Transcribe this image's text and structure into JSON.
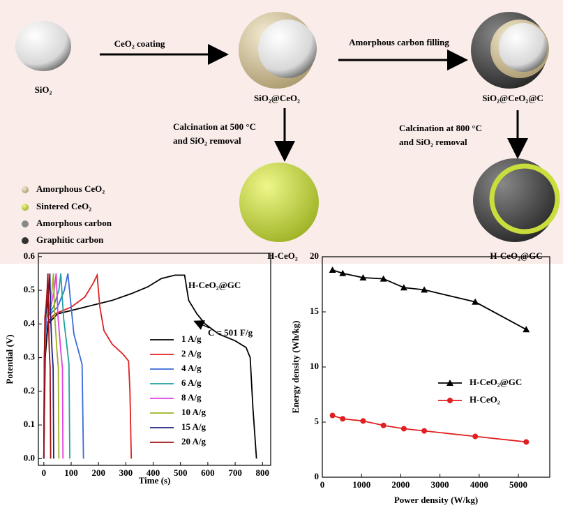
{
  "schematic": {
    "sio2": "SiO₂",
    "step1": "CeO₂ coating",
    "sio2_ceo2": "SiO₂@CeO₂",
    "step2": "Amorphous carbon filling",
    "sio2_ceo2_c": "SiO₂@CeO₂@C",
    "calc500": [
      "Calcination at 500 °C",
      "and SiO₂ removal"
    ],
    "calc800": [
      "Calcination at 800 °C",
      "and SiO₂ removal"
    ],
    "h_ceo2": "H-CeO₂",
    "h_ceo2_gc": "H-CeO₂@GC",
    "legend": [
      "Amorphous CeO₂",
      "Sintered CeO₂",
      "Amorphous carbon",
      "Graphitic carbon"
    ]
  },
  "chart_data": [
    {
      "type": "line",
      "x_label": "Time (s)",
      "y_label": "Potential (V)",
      "xlim": [
        -20,
        830
      ],
      "xticks": [
        0,
        100,
        200,
        300,
        400,
        500,
        600,
        700,
        800
      ],
      "ylim": [
        -0.02,
        0.61
      ],
      "yticks": [
        {
          "value": 0,
          "label": "0.0"
        },
        0.1,
        0.2,
        0.3,
        0.4,
        0.5,
        0.6
      ],
      "annotations": [
        "H-CeO₂@GC",
        "C = 501 F/g"
      ],
      "legend": "lower right",
      "series": [
        {
          "name": "1 A/g",
          "color": "#000000",
          "x": [
            0,
            5,
            15,
            50,
            150,
            250,
            320,
            380,
            430,
            480,
            515,
            530,
            560,
            590,
            640,
            700,
            740,
            755,
            765,
            778
          ],
          "values": [
            0,
            0.3,
            0.4,
            0.43,
            0.45,
            0.47,
            0.49,
            0.51,
            0.535,
            0.545,
            0.545,
            0.47,
            0.43,
            0.4,
            0.37,
            0.35,
            0.33,
            0.3,
            0.15,
            0
          ]
        },
        {
          "name": "2 A/g",
          "color": "#e02020",
          "x": [
            0,
            3,
            8,
            40,
            100,
            150,
            180,
            195,
            205,
            220,
            250,
            290,
            310,
            315,
            320
          ],
          "values": [
            0,
            0.3,
            0.4,
            0.43,
            0.45,
            0.48,
            0.52,
            0.545,
            0.45,
            0.38,
            0.34,
            0.31,
            0.29,
            0.2,
            0
          ]
        },
        {
          "name": "4 A/g",
          "color": "#3a6bd8",
          "x": [
            0,
            3,
            10,
            50,
            75,
            88,
            100,
            110,
            130,
            140,
            145
          ],
          "values": [
            0,
            0.3,
            0.42,
            0.45,
            0.5,
            0.55,
            0.45,
            0.37,
            0.31,
            0.28,
            0
          ]
        },
        {
          "name": "6 A/g",
          "color": "#20a0a0",
          "x": [
            0,
            3,
            8,
            35,
            55,
            62,
            72,
            85,
            92,
            95
          ],
          "values": [
            0,
            0.3,
            0.42,
            0.45,
            0.5,
            0.55,
            0.42,
            0.33,
            0.28,
            0
          ]
        },
        {
          "name": "8 A/g",
          "color": "#e040e0",
          "x": [
            0,
            3,
            7,
            25,
            38,
            45,
            52,
            62,
            68,
            70
          ],
          "values": [
            0,
            0.3,
            0.42,
            0.45,
            0.5,
            0.55,
            0.42,
            0.32,
            0.27,
            0
          ]
        },
        {
          "name": "10 A/g",
          "color": "#a0b020",
          "x": [
            0,
            2,
            6,
            20,
            30,
            35,
            40,
            48,
            53,
            55
          ],
          "values": [
            0,
            0.3,
            0.42,
            0.45,
            0.5,
            0.55,
            0.42,
            0.32,
            0.27,
            0
          ]
        },
        {
          "name": "15 A/g",
          "color": "#202080",
          "x": [
            0,
            2,
            5,
            12,
            18,
            22,
            25,
            30,
            34,
            36
          ],
          "values": [
            0,
            0.3,
            0.42,
            0.45,
            0.5,
            0.55,
            0.42,
            0.32,
            0.27,
            0
          ]
        },
        {
          "name": "20 A/g",
          "color": "#a01010",
          "x": [
            0,
            2,
            4,
            8,
            12,
            15,
            17,
            20,
            23,
            25
          ],
          "values": [
            0,
            0.3,
            0.42,
            0.45,
            0.5,
            0.55,
            0.42,
            0.32,
            0.27,
            0
          ]
        }
      ]
    },
    {
      "type": "line",
      "x_label": "Power density (W/kg)",
      "y_label": "Energy density (Wh/kg)",
      "xlim": [
        0,
        5800
      ],
      "xticks": [
        0,
        1000,
        2000,
        3000,
        4000,
        5000
      ],
      "ylim": [
        0,
        20
      ],
      "yticks": [
        0,
        5,
        10,
        15,
        20
      ],
      "legend": "center right",
      "series": [
        {
          "name": "H-CeO₂@GC",
          "color": "#000000",
          "marker": "triangle",
          "x": [
            260,
            520,
            1040,
            1560,
            2080,
            2600,
            3900,
            5200
          ],
          "values": [
            18.8,
            18.5,
            18.1,
            18.0,
            17.2,
            17.0,
            15.9,
            13.4
          ]
        },
        {
          "name": "H-CeO₂",
          "color": "#e02020",
          "marker": "circle",
          "x": [
            260,
            520,
            1040,
            1560,
            2080,
            2600,
            3900,
            5200
          ],
          "values": [
            5.6,
            5.3,
            5.1,
            4.7,
            4.4,
            4.2,
            3.7,
            3.2
          ]
        }
      ]
    }
  ]
}
